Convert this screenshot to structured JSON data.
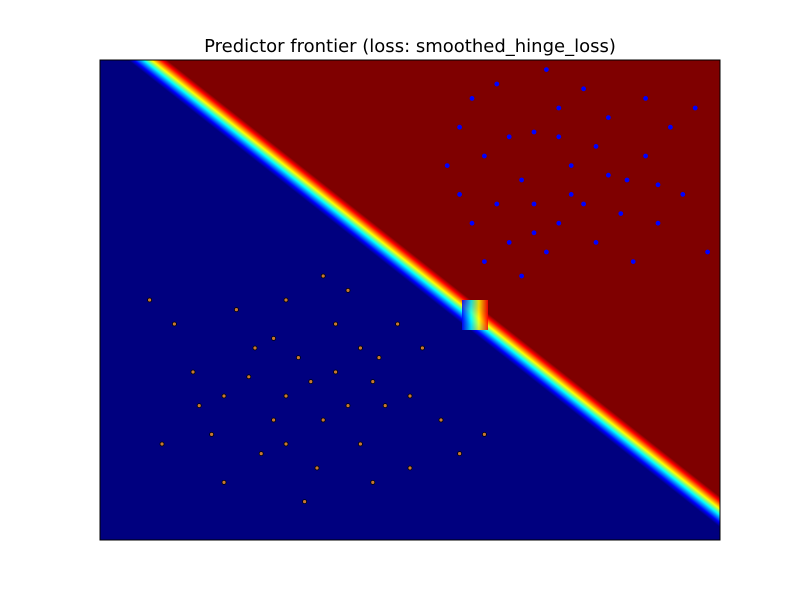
{
  "chart_data": {
    "type": "scatter",
    "title": "Predictor frontier (loss: smoothed_hinge_loss)",
    "xlim": [
      0,
      100
    ],
    "ylim": [
      0,
      100
    ],
    "series": [
      {
        "color": "#0000ff",
        "x": [
          62,
          70,
          78,
          85,
          66,
          74,
          90,
          58,
          82,
          68,
          76,
          72,
          88,
          64,
          80,
          94,
          60,
          70,
          84,
          78,
          66,
          74,
          92,
          56,
          86,
          62,
          80,
          72,
          96,
          68,
          76,
          90,
          58,
          82,
          70,
          64,
          88,
          74,
          98,
          60
        ],
        "values": [
          80,
          85,
          70,
          75,
          62,
          90,
          66,
          72,
          88,
          75,
          78,
          60,
          80,
          95,
          62,
          72,
          66,
          70,
          68,
          94,
          84,
          66,
          86,
          78,
          58,
          58,
          82,
          98,
          90,
          55,
          72,
          74,
          86,
          76,
          64,
          70,
          92,
          84,
          60,
          92
        ]
      },
      {
        "color": "#c87832",
        "edgecolor": "#000000",
        "x": [
          34,
          25,
          40,
          30,
          45,
          20,
          38,
          28,
          50,
          15,
          35,
          42,
          22,
          48,
          32,
          26,
          55,
          18,
          38,
          44,
          30,
          12,
          52,
          36,
          24,
          46,
          40,
          8,
          33,
          58,
          20,
          28,
          42,
          36,
          16,
          50,
          30,
          44,
          62,
          10
        ],
        "values": [
          33,
          40,
          28,
          20,
          38,
          30,
          45,
          25,
          30,
          35,
          15,
          20,
          48,
          45,
          38,
          18,
          25,
          22,
          35,
          12,
          50,
          45,
          40,
          25,
          34,
          28,
          52,
          50,
          8,
          18,
          12,
          42,
          40,
          55,
          28,
          15,
          30,
          33,
          22,
          20
        ]
      }
    ]
  }
}
